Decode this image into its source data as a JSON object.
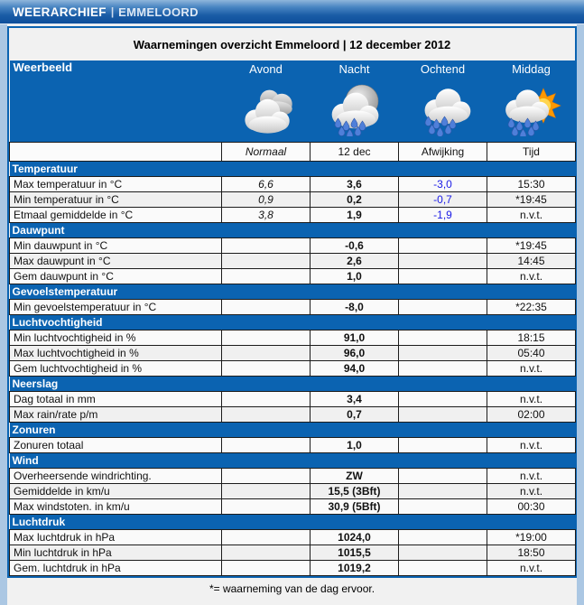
{
  "header": {
    "brand": "WEERARCHIEF",
    "separator": "|",
    "location": "EMMELOORD"
  },
  "table": {
    "title": "Waarnemingen overzicht Emmeloord | 12 december 2012",
    "weerbeeld_label": "Weerbeeld",
    "periods": [
      {
        "label": "Avond",
        "icon": "cloudy"
      },
      {
        "label": "Nacht",
        "icon": "rain-moon"
      },
      {
        "label": "Ochtend",
        "icon": "rain"
      },
      {
        "label": "Middag",
        "icon": "rain-sun"
      }
    ],
    "column_headers": [
      "Normaal",
      "12 dec",
      "Afwijking",
      "Tijd"
    ],
    "sections": [
      {
        "label": "Temperatuur",
        "rows": [
          {
            "label": "Max temperatuur in °C",
            "normaal": "6,6",
            "value": "3,6",
            "afwijking": "-3,0",
            "tijd": "15:30"
          },
          {
            "label": "Min temperatuur in °C",
            "normaal": "0,9",
            "value": "0,2",
            "afwijking": "-0,7",
            "tijd": "*19:45"
          },
          {
            "label": "Etmaal gemiddelde in °C",
            "normaal": "3,8",
            "value": "1,9",
            "afwijking": "-1,9",
            "tijd": "n.v.t."
          }
        ]
      },
      {
        "label": "Dauwpunt",
        "rows": [
          {
            "label": "Min dauwpunt in °C",
            "normaal": "",
            "value": "-0,6",
            "afwijking": "",
            "tijd": "*19:45"
          },
          {
            "label": "Max dauwpunt in °C",
            "normaal": "",
            "value": "2,6",
            "afwijking": "",
            "tijd": "14:45"
          },
          {
            "label": "Gem dauwpunt in °C",
            "normaal": "",
            "value": "1,0",
            "afwijking": "",
            "tijd": "n.v.t."
          }
        ]
      },
      {
        "label": "Gevoelstemperatuur",
        "rows": [
          {
            "label": "Min gevoelstemperatuur in °C",
            "normaal": "",
            "value": "-8,0",
            "afwijking": "",
            "tijd": "*22:35"
          }
        ]
      },
      {
        "label": "Luchtvochtigheid",
        "rows": [
          {
            "label": "Min luchtvochtigheid in %",
            "normaal": "",
            "value": "91,0",
            "afwijking": "",
            "tijd": "18:15"
          },
          {
            "label": "Max luchtvochtigheid in %",
            "normaal": "",
            "value": "96,0",
            "afwijking": "",
            "tijd": "05:40"
          },
          {
            "label": "Gem luchtvochtigheid in %",
            "normaal": "",
            "value": "94,0",
            "afwijking": "",
            "tijd": "n.v.t."
          }
        ]
      },
      {
        "label": "Neerslag",
        "rows": [
          {
            "label": "Dag totaal in mm",
            "normaal": "",
            "value": "3,4",
            "afwijking": "",
            "tijd": "n.v.t."
          },
          {
            "label": "Max rain/rate p/m",
            "normaal": "",
            "value": "0,7",
            "afwijking": "",
            "tijd": "02:00"
          }
        ]
      },
      {
        "label": "Zonuren",
        "rows": [
          {
            "label": "Zonuren totaal",
            "normaal": "",
            "value": "1,0",
            "afwijking": "",
            "tijd": "n.v.t."
          }
        ]
      },
      {
        "label": "Wind",
        "rows": [
          {
            "label": "Overheersende windrichting.",
            "normaal": "",
            "value": "ZW",
            "afwijking": "",
            "tijd": "n.v.t."
          },
          {
            "label": "Gemiddelde in km/u",
            "normaal": "",
            "value": "15,5 (3Bft)",
            "afwijking": "",
            "tijd": "n.v.t."
          },
          {
            "label": "Max windstoten. in km/u",
            "normaal": "",
            "value": "30,9 (5Bft)",
            "afwijking": "",
            "tijd": "00:30"
          }
        ]
      },
      {
        "label": "Luchtdruk",
        "rows": [
          {
            "label": "Max luchtdruk in hPa",
            "normaal": "",
            "value": "1024,0",
            "afwijking": "",
            "tijd": "*19:00"
          },
          {
            "label": "Min luchtdruk in hPa",
            "normaal": "",
            "value": "1015,5",
            "afwijking": "",
            "tijd": "18:50"
          },
          {
            "label": "Gem. luchtdruk in hPa",
            "normaal": "",
            "value": "1019,2",
            "afwijking": "",
            "tijd": "n.v.t."
          }
        ]
      }
    ],
    "footnote": "*= waarneming van de dag ervoor."
  },
  "colors": {
    "section_blue": "#0B63B1",
    "afwijking_text": "#1A1AE6",
    "topbar_gradient_top": "#8FB6DB",
    "topbar_gradient_bottom": "#0E4F9B",
    "page_margin": "#ABC7E3",
    "panel_bg": "#F1F1F1"
  }
}
